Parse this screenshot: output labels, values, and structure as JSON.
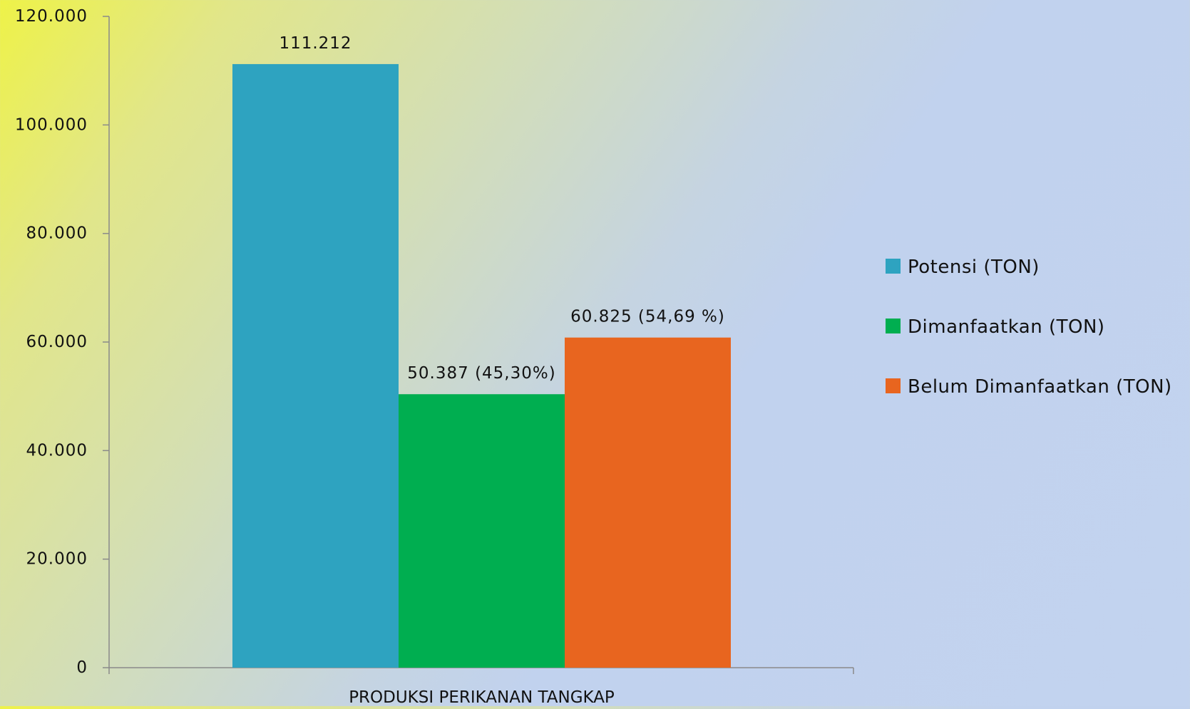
{
  "chart_data": {
    "type": "bar",
    "categories": [
      "PRODUKSI PERIKANAN TANGKAP"
    ],
    "series": [
      {
        "name": "Potensi (TON)",
        "values": [
          111212
        ],
        "label": "111.212",
        "color": "#2ea3c0"
      },
      {
        "name": "Dimanfaatkan (TON)",
        "values": [
          50387
        ],
        "label": "50.387 (45,30%)",
        "color": "#00ae50"
      },
      {
        "name": "Belum Dimanfaatkan (TON)",
        "values": [
          60825
        ],
        "label": "60.825 (54,69 %)",
        "color": "#e8651f"
      }
    ],
    "y_ticks": [
      "0",
      "20.000",
      "40.000",
      "60.000",
      "80.000",
      "100.000",
      "120.000"
    ],
    "ylim": [
      0,
      120000
    ],
    "grid": false,
    "legend_position": "right",
    "title": "",
    "xlabel": "",
    "ylabel": ""
  }
}
